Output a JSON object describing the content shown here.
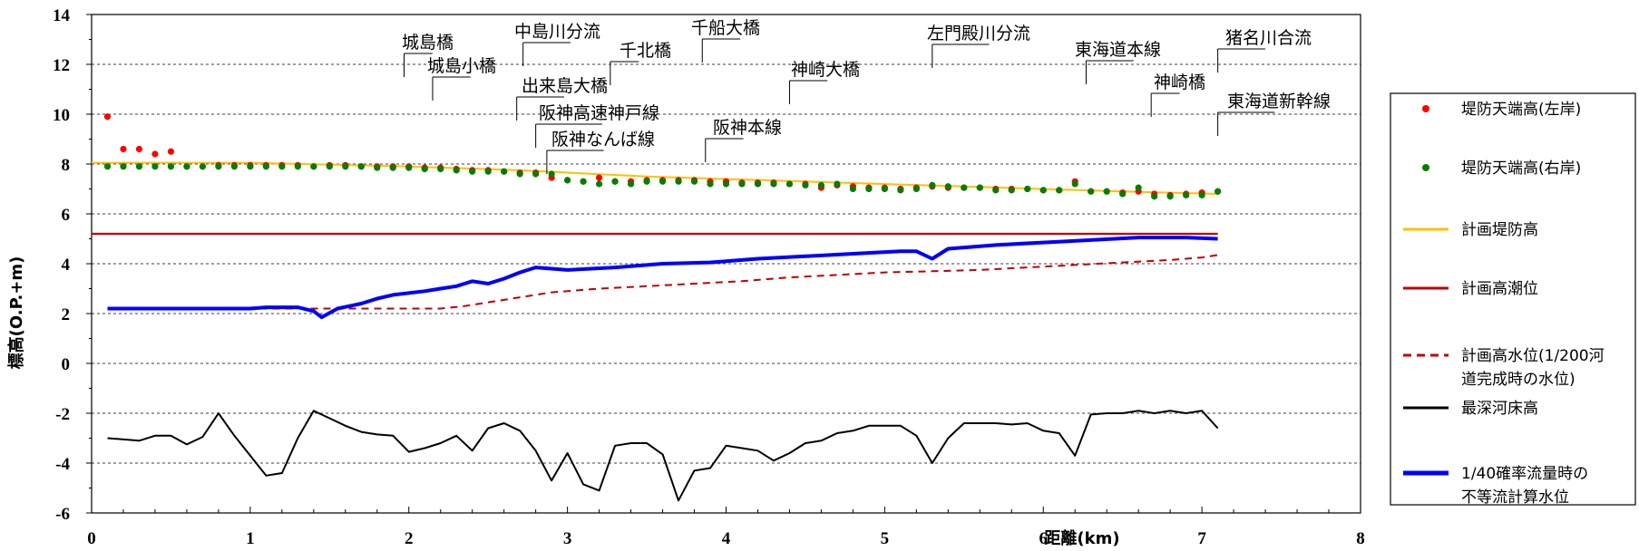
{
  "chart_data": {
    "type": "line",
    "ylabel": "標高(O.P.+m)",
    "xlabel": "距離(km)",
    "xlim": [
      0,
      8
    ],
    "ylim": [
      -6,
      14
    ],
    "x_ticks": [
      0,
      1,
      2,
      3,
      4,
      5,
      6,
      7,
      8
    ],
    "y_ticks": [
      -6,
      -4,
      -2,
      0,
      2,
      4,
      6,
      8,
      10,
      12,
      14
    ],
    "y_tick_labels": [
      "-6",
      "-4",
      "-2",
      "0",
      "2",
      "4",
      "6",
      "8",
      "10",
      "12",
      "14"
    ],
    "x_tick_labels": [
      "0",
      "1",
      "2",
      "3",
      "4",
      "5",
      "6",
      "7",
      "8"
    ],
    "grid": "horizontal dashed",
    "legend_position": "right",
    "series": [
      {
        "name": "堤防天端高(左岸)",
        "type": "scatter",
        "color": "#ff0000",
        "points": [
          [
            0.1,
            9.9
          ],
          [
            0.2,
            8.6
          ],
          [
            0.3,
            8.6
          ],
          [
            0.4,
            8.4
          ],
          [
            0.5,
            8.5
          ],
          [
            0.6,
            7.9
          ],
          [
            0.7,
            7.9
          ],
          [
            0.8,
            7.95
          ],
          [
            0.9,
            7.95
          ],
          [
            1.0,
            7.95
          ],
          [
            1.1,
            7.95
          ],
          [
            1.2,
            7.95
          ],
          [
            1.3,
            7.95
          ],
          [
            1.4,
            7.9
          ],
          [
            1.5,
            7.95
          ],
          [
            1.6,
            7.95
          ],
          [
            1.7,
            7.9
          ],
          [
            1.8,
            7.9
          ],
          [
            1.9,
            7.9
          ],
          [
            2.0,
            7.9
          ],
          [
            2.1,
            7.85
          ],
          [
            2.2,
            7.85
          ],
          [
            2.3,
            7.8
          ],
          [
            2.4,
            7.75
          ],
          [
            2.5,
            7.75
          ],
          [
            2.6,
            7.7
          ],
          [
            2.7,
            7.65
          ],
          [
            2.8,
            7.65
          ],
          [
            2.9,
            7.45
          ],
          [
            3.0,
            7.35
          ],
          [
            3.1,
            7.3
          ],
          [
            3.2,
            7.45
          ],
          [
            3.3,
            7.3
          ],
          [
            3.4,
            7.3
          ],
          [
            3.5,
            7.35
          ],
          [
            3.6,
            7.35
          ],
          [
            3.7,
            7.35
          ],
          [
            3.8,
            7.35
          ],
          [
            3.9,
            7.3
          ],
          [
            4.0,
            7.3
          ],
          [
            4.1,
            7.25
          ],
          [
            4.2,
            7.25
          ],
          [
            4.3,
            7.25
          ],
          [
            4.4,
            7.2
          ],
          [
            4.5,
            7.2
          ],
          [
            4.6,
            7.05
          ],
          [
            4.7,
            7.15
          ],
          [
            4.8,
            7.1
          ],
          [
            4.9,
            7.05
          ],
          [
            5.0,
            7.05
          ],
          [
            5.1,
            7.0
          ],
          [
            5.2,
            7.05
          ],
          [
            5.3,
            7.1
          ],
          [
            5.4,
            7.05
          ],
          [
            5.5,
            7.05
          ],
          [
            5.6,
            7.05
          ],
          [
            5.7,
            7.0
          ],
          [
            5.8,
            7.0
          ],
          [
            5.9,
            7.0
          ],
          [
            6.0,
            6.95
          ],
          [
            6.1,
            6.95
          ],
          [
            6.2,
            7.3
          ],
          [
            6.3,
            6.9
          ],
          [
            6.4,
            6.9
          ],
          [
            6.5,
            6.85
          ],
          [
            6.6,
            6.9
          ],
          [
            6.7,
            6.8
          ],
          [
            6.8,
            6.75
          ],
          [
            6.9,
            6.8
          ],
          [
            7.0,
            6.85
          ],
          [
            7.1,
            6.9
          ]
        ]
      },
      {
        "name": "堤防天端高(右岸)",
        "type": "scatter",
        "color": "#008000",
        "points": [
          [
            0.1,
            7.9
          ],
          [
            0.2,
            7.9
          ],
          [
            0.3,
            7.9
          ],
          [
            0.4,
            7.9
          ],
          [
            0.5,
            7.9
          ],
          [
            0.6,
            7.9
          ],
          [
            0.7,
            7.9
          ],
          [
            0.8,
            7.9
          ],
          [
            0.9,
            7.9
          ],
          [
            1.0,
            7.9
          ],
          [
            1.1,
            7.9
          ],
          [
            1.2,
            7.9
          ],
          [
            1.3,
            7.9
          ],
          [
            1.4,
            7.9
          ],
          [
            1.5,
            7.9
          ],
          [
            1.6,
            7.9
          ],
          [
            1.7,
            7.9
          ],
          [
            1.8,
            7.85
          ],
          [
            1.9,
            7.85
          ],
          [
            2.0,
            7.85
          ],
          [
            2.1,
            7.8
          ],
          [
            2.2,
            7.8
          ],
          [
            2.3,
            7.75
          ],
          [
            2.4,
            7.7
          ],
          [
            2.5,
            7.7
          ],
          [
            2.6,
            7.7
          ],
          [
            2.7,
            7.6
          ],
          [
            2.8,
            7.6
          ],
          [
            2.9,
            7.6
          ],
          [
            3.0,
            7.35
          ],
          [
            3.1,
            7.3
          ],
          [
            3.2,
            7.2
          ],
          [
            3.3,
            7.3
          ],
          [
            3.4,
            7.2
          ],
          [
            3.5,
            7.3
          ],
          [
            3.6,
            7.3
          ],
          [
            3.7,
            7.3
          ],
          [
            3.8,
            7.3
          ],
          [
            3.9,
            7.2
          ],
          [
            4.0,
            7.2
          ],
          [
            4.1,
            7.2
          ],
          [
            4.2,
            7.2
          ],
          [
            4.3,
            7.2
          ],
          [
            4.4,
            7.2
          ],
          [
            4.5,
            7.15
          ],
          [
            4.6,
            7.15
          ],
          [
            4.7,
            7.2
          ],
          [
            4.8,
            7.0
          ],
          [
            4.9,
            7.0
          ],
          [
            5.0,
            7.0
          ],
          [
            5.1,
            6.95
          ],
          [
            5.2,
            7.0
          ],
          [
            5.3,
            7.15
          ],
          [
            5.4,
            7.1
          ],
          [
            5.5,
            7.05
          ],
          [
            5.6,
            7.05
          ],
          [
            5.7,
            6.95
          ],
          [
            5.8,
            6.95
          ],
          [
            5.9,
            7.0
          ],
          [
            6.0,
            6.95
          ],
          [
            6.1,
            6.95
          ],
          [
            6.2,
            7.2
          ],
          [
            6.3,
            6.9
          ],
          [
            6.4,
            6.9
          ],
          [
            6.5,
            6.8
          ],
          [
            6.6,
            7.05
          ],
          [
            6.7,
            6.7
          ],
          [
            6.8,
            6.7
          ],
          [
            6.9,
            6.75
          ],
          [
            7.0,
            6.75
          ],
          [
            7.1,
            6.9
          ]
        ]
      },
      {
        "name": "計画堤防高",
        "type": "line",
        "color": "#ffc000",
        "dash": "solid",
        "points": [
          [
            0,
            8.05
          ],
          [
            1.0,
            8.05
          ],
          [
            2.0,
            7.9
          ],
          [
            2.7,
            7.75
          ],
          [
            3.5,
            7.5
          ],
          [
            4.5,
            7.3
          ],
          [
            5.5,
            7.1
          ],
          [
            6.5,
            6.9
          ],
          [
            7.1,
            6.8
          ]
        ]
      },
      {
        "name": "計画高潮位",
        "type": "line",
        "color": "#c00000",
        "dash": "solid",
        "points": [
          [
            0,
            5.2
          ],
          [
            7.1,
            5.2
          ]
        ]
      },
      {
        "name": "計画高水位(1/200河道完成時の水位)",
        "type": "line",
        "color": "#c00000",
        "dash": "dashed",
        "points": [
          [
            0.1,
            2.2
          ],
          [
            1.5,
            2.2
          ],
          [
            2.2,
            2.2
          ],
          [
            2.35,
            2.3
          ],
          [
            2.5,
            2.45
          ],
          [
            2.7,
            2.65
          ],
          [
            2.9,
            2.85
          ],
          [
            3.2,
            3.0
          ],
          [
            3.5,
            3.1
          ],
          [
            3.8,
            3.2
          ],
          [
            4.1,
            3.3
          ],
          [
            4.4,
            3.45
          ],
          [
            4.7,
            3.55
          ],
          [
            5.0,
            3.65
          ],
          [
            5.3,
            3.7
          ],
          [
            5.6,
            3.75
          ],
          [
            5.9,
            3.85
          ],
          [
            6.2,
            3.95
          ],
          [
            6.5,
            4.05
          ],
          [
            6.8,
            4.15
          ],
          [
            7.0,
            4.25
          ],
          [
            7.1,
            4.35
          ]
        ]
      },
      {
        "name": "最深河床高",
        "type": "line",
        "color": "#000000",
        "dash": "solid",
        "points": [
          [
            0.1,
            -3.0
          ],
          [
            0.3,
            -3.1
          ],
          [
            0.4,
            -2.9
          ],
          [
            0.5,
            -2.9
          ],
          [
            0.6,
            -3.25
          ],
          [
            0.7,
            -2.95
          ],
          [
            0.8,
            -2.0
          ],
          [
            0.9,
            -2.9
          ],
          [
            1.0,
            -3.7
          ],
          [
            1.1,
            -4.5
          ],
          [
            1.2,
            -4.4
          ],
          [
            1.3,
            -3.0
          ],
          [
            1.4,
            -1.9
          ],
          [
            1.5,
            -2.2
          ],
          [
            1.6,
            -2.5
          ],
          [
            1.7,
            -2.75
          ],
          [
            1.8,
            -2.85
          ],
          [
            1.9,
            -2.9
          ],
          [
            2.0,
            -3.55
          ],
          [
            2.1,
            -3.4
          ],
          [
            2.2,
            -3.2
          ],
          [
            2.3,
            -2.9
          ],
          [
            2.4,
            -3.5
          ],
          [
            2.5,
            -2.6
          ],
          [
            2.6,
            -2.4
          ],
          [
            2.7,
            -2.7
          ],
          [
            2.8,
            -3.5
          ],
          [
            2.9,
            -4.7
          ],
          [
            3.0,
            -3.6
          ],
          [
            3.1,
            -4.85
          ],
          [
            3.2,
            -5.1
          ],
          [
            3.3,
            -3.3
          ],
          [
            3.4,
            -3.2
          ],
          [
            3.5,
            -3.2
          ],
          [
            3.6,
            -3.65
          ],
          [
            3.7,
            -5.5
          ],
          [
            3.8,
            -4.3
          ],
          [
            3.9,
            -4.2
          ],
          [
            4.0,
            -3.3
          ],
          [
            4.1,
            -3.4
          ],
          [
            4.2,
            -3.5
          ],
          [
            4.3,
            -3.9
          ],
          [
            4.4,
            -3.6
          ],
          [
            4.5,
            -3.2
          ],
          [
            4.6,
            -3.1
          ],
          [
            4.7,
            -2.8
          ],
          [
            4.8,
            -2.7
          ],
          [
            4.9,
            -2.5
          ],
          [
            5.0,
            -2.5
          ],
          [
            5.1,
            -2.5
          ],
          [
            5.2,
            -2.9
          ],
          [
            5.3,
            -4.0
          ],
          [
            5.4,
            -3.0
          ],
          [
            5.5,
            -2.4
          ],
          [
            5.6,
            -2.4
          ],
          [
            5.7,
            -2.4
          ],
          [
            5.8,
            -2.45
          ],
          [
            5.9,
            -2.4
          ],
          [
            6.0,
            -2.7
          ],
          [
            6.1,
            -2.8
          ],
          [
            6.2,
            -3.7
          ],
          [
            6.3,
            -2.05
          ],
          [
            6.4,
            -2.0
          ],
          [
            6.5,
            -2.0
          ],
          [
            6.6,
            -1.9
          ],
          [
            6.7,
            -2.0
          ],
          [
            6.8,
            -1.9
          ],
          [
            6.9,
            -2.0
          ],
          [
            7.0,
            -1.9
          ],
          [
            7.1,
            -2.6
          ]
        ]
      },
      {
        "name": "1/40確率流量時の不等流計算水位",
        "type": "line",
        "color": "#0000ff",
        "dash": "solid",
        "points": [
          [
            0.1,
            2.2
          ],
          [
            0.5,
            2.2
          ],
          [
            1.0,
            2.2
          ],
          [
            1.1,
            2.25
          ],
          [
            1.3,
            2.25
          ],
          [
            1.4,
            2.1
          ],
          [
            1.45,
            1.85
          ],
          [
            1.55,
            2.2
          ],
          [
            1.7,
            2.4
          ],
          [
            1.8,
            2.6
          ],
          [
            1.9,
            2.75
          ],
          [
            2.1,
            2.9
          ],
          [
            2.2,
            3.0
          ],
          [
            2.3,
            3.1
          ],
          [
            2.4,
            3.3
          ],
          [
            2.5,
            3.2
          ],
          [
            2.6,
            3.4
          ],
          [
            2.7,
            3.65
          ],
          [
            2.8,
            3.85
          ],
          [
            2.9,
            3.8
          ],
          [
            3.0,
            3.75
          ],
          [
            3.3,
            3.85
          ],
          [
            3.6,
            4.0
          ],
          [
            3.9,
            4.05
          ],
          [
            4.2,
            4.2
          ],
          [
            4.5,
            4.3
          ],
          [
            4.8,
            4.4
          ],
          [
            5.1,
            4.5
          ],
          [
            5.2,
            4.5
          ],
          [
            5.3,
            4.2
          ],
          [
            5.4,
            4.6
          ],
          [
            5.7,
            4.75
          ],
          [
            6.0,
            4.85
          ],
          [
            6.3,
            4.95
          ],
          [
            6.6,
            5.05
          ],
          [
            6.9,
            5.05
          ],
          [
            7.1,
            5.0
          ]
        ]
      }
    ],
    "legend_labels": [
      [
        "堤防天端高(左岸)"
      ],
      [
        "堤防天端高(右岸)"
      ],
      [
        "計画堤防高"
      ],
      [
        "計画高潮位"
      ],
      [
        "計画高水位(1/200河",
        "道完成時の水位)"
      ],
      [
        "最深河床高"
      ],
      [
        "1/40確率流量時の",
        "不等流計算水位"
      ]
    ],
    "annotations": [
      {
        "text": "城島橋",
        "x": 1.97
      },
      {
        "text": "城島小橋",
        "x": 2.15
      },
      {
        "text": "中島川分流",
        "x": 2.72
      },
      {
        "text": "千北橋",
        "x": 3.27
      },
      {
        "text": "千船大橋",
        "x": 3.85
      },
      {
        "text": "出来島大橋",
        "x": 2.68
      },
      {
        "text": "阪神高速神戸線",
        "x": 2.8
      },
      {
        "text": "阪神なんば線",
        "x": 2.87
      },
      {
        "text": "阪神本線",
        "x": 3.87
      },
      {
        "text": "神崎大橋",
        "x": 4.4
      },
      {
        "text": "左門殿川分流",
        "x": 5.3
      },
      {
        "text": "東海道本線",
        "x": 6.27
      },
      {
        "text": "神崎橋",
        "x": 6.68
      },
      {
        "text": "猪名川合流",
        "x": 7.1
      },
      {
        "text": "東海道新幹線",
        "x": 7.1
      }
    ]
  }
}
